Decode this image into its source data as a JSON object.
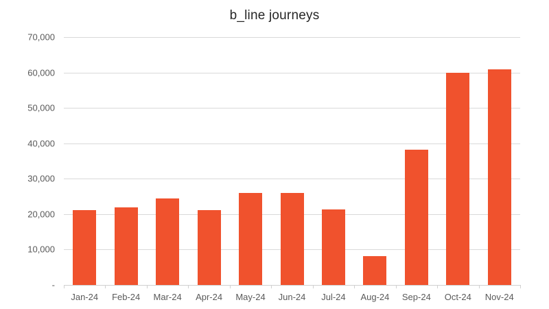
{
  "chart_data": {
    "type": "bar",
    "title": "b_line journeys",
    "xlabel": "",
    "ylabel": "",
    "categories": [
      "Jan-24",
      "Feb-24",
      "Mar-24",
      "Apr-24",
      "May-24",
      "Jun-24",
      "Jul-24",
      "Aug-24",
      "Sep-24",
      "Oct-24",
      "Nov-24"
    ],
    "values": [
      21100,
      21900,
      24400,
      21100,
      26000,
      26000,
      21300,
      8200,
      38200,
      60000,
      60800
    ],
    "ylim": [
      0,
      70000
    ],
    "yticks": [
      0,
      10000,
      20000,
      30000,
      40000,
      50000,
      60000,
      70000
    ],
    "ytick_labels": [
      "-",
      "10,000",
      "20,000",
      "30,000",
      "40,000",
      "50,000",
      "60,000",
      "70,000"
    ],
    "grid": true,
    "legend": null,
    "bar_color": "#f0522d"
  }
}
